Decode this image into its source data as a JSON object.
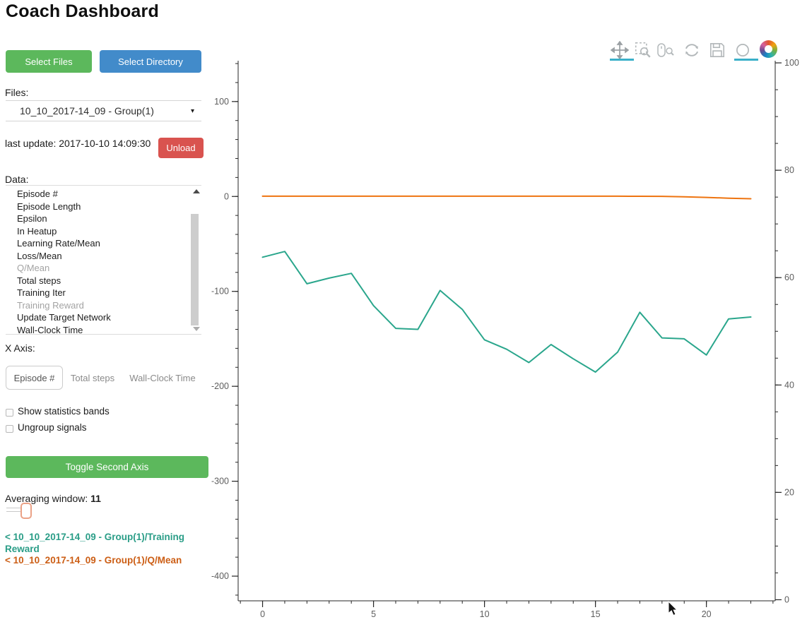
{
  "page": {
    "title": "Coach Dashboard"
  },
  "sidebar": {
    "select_files_label": "Select Files",
    "select_directory_label": "Select Directory",
    "files_label": "Files:",
    "files_selected": "10_10_2017-14_09 - Group(1)",
    "files_caret": "▾",
    "last_update": "last update: 2017-10-10 14:09:30",
    "unload_label": "Unload",
    "data_label": "Data:",
    "data_items": [
      {
        "label": "Episode #",
        "dimmed": false
      },
      {
        "label": "Episode Length",
        "dimmed": false
      },
      {
        "label": "Epsilon",
        "dimmed": false
      },
      {
        "label": "In Heatup",
        "dimmed": false
      },
      {
        "label": "Learning Rate/Mean",
        "dimmed": false
      },
      {
        "label": "Loss/Mean",
        "dimmed": false
      },
      {
        "label": "Q/Mean",
        "dimmed": true
      },
      {
        "label": "Total steps",
        "dimmed": false
      },
      {
        "label": "Training Iter",
        "dimmed": false
      },
      {
        "label": "Training Reward",
        "dimmed": true
      },
      {
        "label": "Update Target Network",
        "dimmed": false
      },
      {
        "label": "Wall-Clock Time",
        "dimmed": false
      }
    ],
    "x_axis_label": "X Axis:",
    "x_axis_options": [
      {
        "label": "Episode #",
        "selected": true
      },
      {
        "label": "Total steps",
        "selected": false
      },
      {
        "label": "Wall-Clock Time",
        "selected": false
      }
    ],
    "checkboxes": [
      {
        "label": "Show statistics bands",
        "checked": false
      },
      {
        "label": "Ungroup signals",
        "checked": false
      }
    ],
    "toggle_second_axis_label": "Toggle Second Axis",
    "averaging_label": "Averaging window:",
    "averaging_value": "11",
    "legend": [
      {
        "label": "< 10_10_2017-14_09 - Group(1)/Training Reward",
        "color": "#2a9d87"
      },
      {
        "label": "< 10_10_2017-14_09 - Group(1)/Q/Mean",
        "color": "#cc5e15"
      }
    ]
  },
  "toolbar": {
    "tools": [
      "pan",
      "box-zoom",
      "wheel-zoom",
      "reset",
      "save",
      "hover"
    ],
    "active_tools": [
      "pan",
      "hover"
    ],
    "accent_color": "#3ab0c9",
    "icon_color": "#9ba1a4"
  },
  "chart_data": {
    "type": "line",
    "x": [
      0,
      1,
      2,
      3,
      4,
      5,
      6,
      7,
      8,
      9,
      10,
      11,
      12,
      13,
      14,
      15,
      16,
      17,
      18,
      19,
      20,
      21,
      22
    ],
    "series": [
      {
        "name": "10_10_2017-14_09 - Group(1)/Training Reward",
        "axis": "left",
        "color": "#2aa68c",
        "values": [
          -64,
          -58,
          -92,
          -86,
          -81,
          -115,
          -139,
          -140,
          -99,
          -119,
          -151,
          -161,
          -175,
          -156,
          -171,
          -185,
          -164,
          -122,
          -149,
          -150,
          -167,
          -129,
          -127
        ]
      },
      {
        "name": "10_10_2017-14_09 - Group(1)/Q/Mean",
        "axis": "left",
        "color": "#ee7410",
        "values": [
          0.3,
          0.3,
          0.3,
          0.3,
          0.3,
          0.3,
          0.3,
          0.3,
          0.3,
          0.3,
          0.3,
          0.3,
          0.3,
          0.3,
          0.3,
          0.3,
          0.3,
          0.2,
          0.1,
          -0.3,
          -1.0,
          -1.8,
          -2.4
        ]
      }
    ],
    "x_axis": {
      "lim": [
        -1.1,
        23.1
      ],
      "major_ticks": [
        0,
        5,
        10,
        15,
        20
      ],
      "minor_step": 1
    },
    "left_axis": {
      "lim": [
        -426,
        143
      ],
      "major_ticks": [
        100,
        0,
        -100,
        -200,
        -300,
        -400
      ],
      "minor_step": 20
    },
    "right_axis": {
      "lim": [
        -0.2,
        100.4
      ],
      "major_ticks": [
        0,
        20,
        40,
        60,
        80,
        100
      ],
      "minor_step": 5
    },
    "grid": false,
    "legend_position": "sidebar",
    "title": ""
  }
}
